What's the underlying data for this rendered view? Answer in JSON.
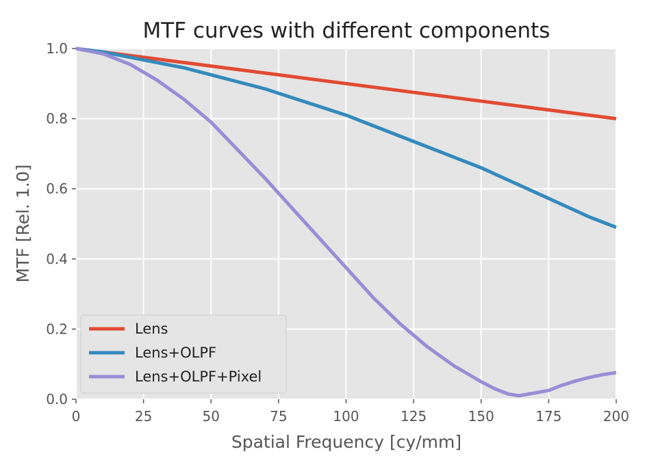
{
  "chart_data": {
    "type": "line",
    "title": "MTF curves with different components",
    "xlabel": "Spatial Frequency [cy/mm]",
    "ylabel": "MTF [Rel. 1.0]",
    "xlim": [
      0,
      200
    ],
    "ylim": [
      0,
      1.0
    ],
    "x_ticks": [
      "0",
      "25",
      "50",
      "75",
      "100",
      "125",
      "150",
      "175",
      "200"
    ],
    "y_ticks": [
      "0.0",
      "0.2",
      "0.4",
      "0.6",
      "0.8",
      "1.0"
    ],
    "grid": true,
    "style": "ggplot",
    "legend_position": "lower-left",
    "series": [
      {
        "name": "Lens",
        "color": "#e24a33",
        "x": [
          0,
          10,
          20,
          30,
          40,
          50,
          60,
          70,
          80,
          90,
          100,
          110,
          120,
          130,
          140,
          150,
          160,
          170,
          180,
          190,
          200
        ],
        "y": [
          1.0,
          0.99,
          0.98,
          0.97,
          0.96,
          0.95,
          0.94,
          0.93,
          0.92,
          0.91,
          0.9,
          0.89,
          0.88,
          0.87,
          0.86,
          0.85,
          0.84,
          0.83,
          0.82,
          0.81,
          0.8
        ]
      },
      {
        "name": "Lens+OLPF",
        "color": "#348abd",
        "x": [
          0,
          10,
          20,
          30,
          40,
          50,
          60,
          70,
          80,
          90,
          100,
          110,
          120,
          130,
          140,
          150,
          160,
          170,
          180,
          190,
          200
        ],
        "y": [
          1.0,
          0.99,
          0.975,
          0.96,
          0.945,
          0.925,
          0.905,
          0.885,
          0.86,
          0.835,
          0.81,
          0.78,
          0.75,
          0.72,
          0.69,
          0.66,
          0.625,
          0.59,
          0.555,
          0.52,
          0.49
        ]
      },
      {
        "name": "Lens+OLPF+Pixel",
        "color": "#988ed5",
        "x": [
          0,
          10,
          20,
          30,
          40,
          50,
          60,
          70,
          80,
          90,
          100,
          110,
          120,
          130,
          140,
          150,
          155,
          160,
          164,
          170,
          175,
          180,
          185,
          190,
          195,
          200
        ],
        "y": [
          1.0,
          0.985,
          0.955,
          0.91,
          0.855,
          0.79,
          0.71,
          0.63,
          0.545,
          0.46,
          0.375,
          0.29,
          0.215,
          0.15,
          0.095,
          0.05,
          0.03,
          0.015,
          0.01,
          0.018,
          0.025,
          0.04,
          0.052,
          0.062,
          0.07,
          0.076
        ]
      }
    ]
  }
}
